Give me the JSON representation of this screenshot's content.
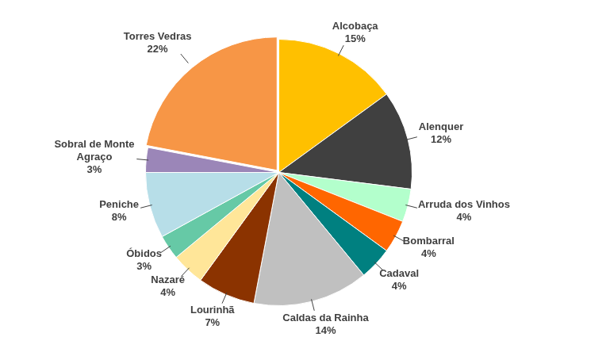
{
  "chart_data": {
    "type": "pie",
    "categories": [
      "Alcobaça",
      "Alenquer",
      "Arruda dos Vinhos",
      "Bombarral",
      "Cadaval",
      "Caldas da Rainha",
      "Lourinhã",
      "Nazaré",
      "Óbidos",
      "Peniche",
      "Sobral de Monte Agraço",
      "Torres Vedras"
    ],
    "values": [
      15,
      12,
      4,
      4,
      4,
      14,
      7,
      4,
      3,
      8,
      3,
      22
    ],
    "value_labels": [
      "15%",
      "12%",
      "4%",
      "4%",
      "4%",
      "14%",
      "7%",
      "4%",
      "3%",
      "8%",
      "3%",
      "22%"
    ],
    "colors": [
      "#ffc000",
      "#404040",
      "#b3ffcc",
      "#ff6600",
      "#008080",
      "#c0c0c0",
      "#8b3300",
      "#ffe699",
      "#66c9a6",
      "#b7dee8",
      "#9b86b8",
      "#f79646"
    ],
    "data_labels": true
  }
}
